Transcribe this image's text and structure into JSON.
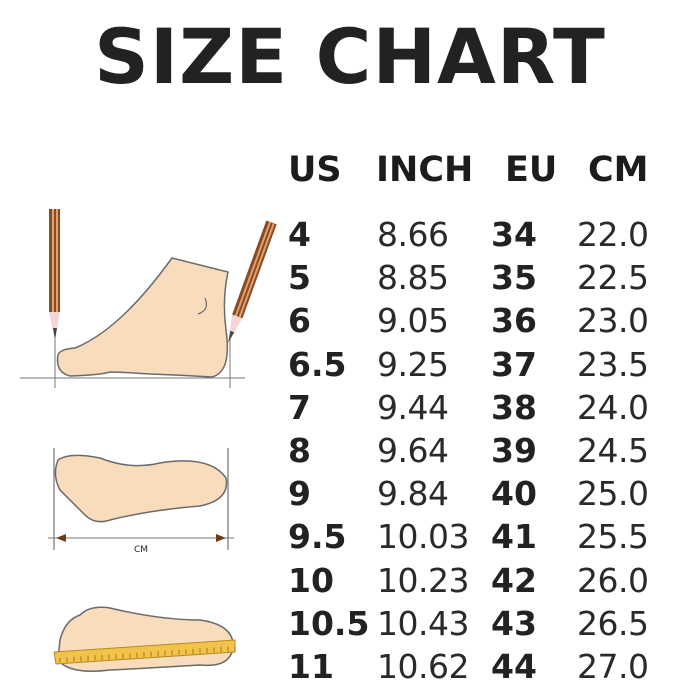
{
  "title": "SIZE CHART",
  "headers": [
    "US",
    "INCH",
    "EU",
    "CM"
  ],
  "rows": [
    {
      "us": "4",
      "inch": "8.66",
      "eu": "34",
      "cm": "22.0"
    },
    {
      "us": "5",
      "inch": "8.85",
      "eu": "35",
      "cm": "22.5"
    },
    {
      "us": "6",
      "inch": "9.05",
      "eu": "36",
      "cm": "23.0"
    },
    {
      "us": "6.5",
      "inch": "9.25",
      "eu": "37",
      "cm": "23.5"
    },
    {
      "us": "7",
      "inch": "9.44",
      "eu": "38",
      "cm": "24.0"
    },
    {
      "us": "8",
      "inch": "9.64",
      "eu": "39",
      "cm": "24.5"
    },
    {
      "us": "9",
      "inch": "9.84",
      "eu": "40",
      "cm": "25.0"
    },
    {
      "us": "9.5",
      "inch": "10.03",
      "eu": "41",
      "cm": "25.5"
    },
    {
      "us": "10",
      "inch": "10.23",
      "eu": "42",
      "cm": "26.0"
    },
    {
      "us": "10.5",
      "inch": "10.43",
      "eu": "43",
      "cm": "26.5"
    },
    {
      "us": "11",
      "inch": "10.62",
      "eu": "44",
      "cm": "27.0"
    }
  ],
  "illustration": {
    "measure_label": "CM",
    "skin_color": "#f8dcbc",
    "outline_color": "#6b6b6b",
    "pencil_color": "#8a4a22",
    "ruler_color": "#f2c24a"
  }
}
